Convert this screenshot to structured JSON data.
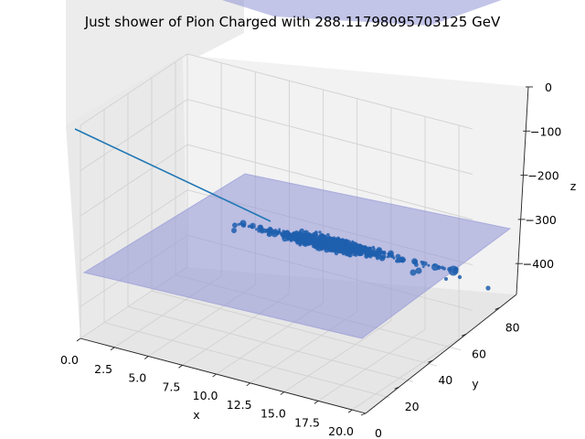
{
  "chart_data": {
    "type": "scatter",
    "title": "Just shower of Pion Charged with 288.11798095703125 GeV",
    "xlabel": "x",
    "ylabel": "y",
    "zlabel": "z",
    "xlim": [
      0,
      21
    ],
    "ylim": [
      0,
      90
    ],
    "zlim": [
      -470,
      0
    ],
    "x_ticks": [
      "0.0",
      "2.5",
      "5.0",
      "7.5",
      "10.0",
      "12.5",
      "15.0",
      "17.5",
      "20.0"
    ],
    "y_ticks": [
      "0",
      "20",
      "40",
      "60",
      "80"
    ],
    "z_ticks": [
      "0",
      "−100",
      "−200",
      "−300",
      "−400"
    ],
    "grid": true,
    "series": [
      {
        "kind": "trajectory-line",
        "color": "#1f77b4",
        "points": [
          {
            "x": 0.0,
            "y": 0.0,
            "z": -50
          },
          {
            "x": 10.2,
            "y": 44.0,
            "z": -310
          }
        ]
      },
      {
        "kind": "hits-scatter",
        "color": "#1f5fae",
        "center": {
          "x": 10.8,
          "y": 46.0,
          "z": -330
        },
        "extent_x": [
          6.0,
          20.5
        ],
        "count": 900
      },
      {
        "kind": "plane",
        "color": "#8f93d6",
        "z": -330
      }
    ]
  },
  "colors": {
    "pane_light": "#f2f2f2",
    "pane_dark": "#e6e6e6",
    "grid": "#d0d0d0",
    "scatter": "#1f5fae",
    "line": "#1f77b4",
    "plane": "#8f93d6"
  }
}
